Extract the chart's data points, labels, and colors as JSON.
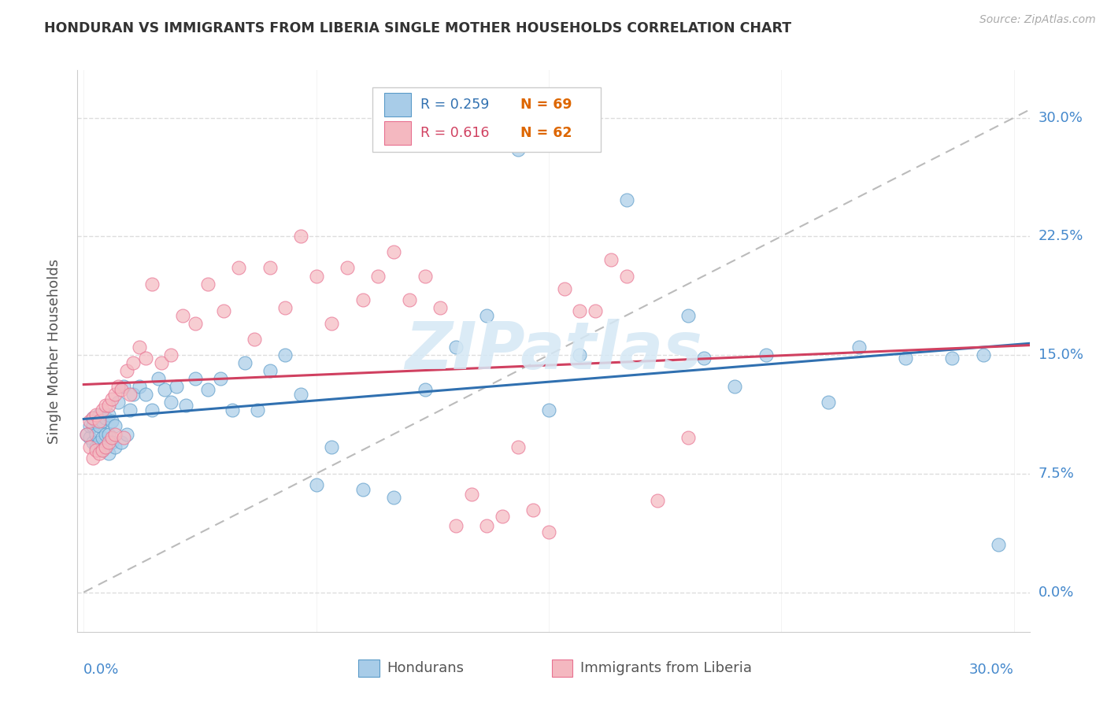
{
  "title": "HONDURAN VS IMMIGRANTS FROM LIBERIA SINGLE MOTHER HOUSEHOLDS CORRELATION CHART",
  "source": "Source: ZipAtlas.com",
  "ylabel": "Single Mother Households",
  "ytick_values": [
    0.0,
    0.075,
    0.15,
    0.225,
    0.3
  ],
  "xlim": [
    -0.002,
    0.305
  ],
  "ylim": [
    -0.025,
    0.33
  ],
  "legend_blue_r": "R = 0.259",
  "legend_blue_n": "N = 69",
  "legend_pink_r": "R = 0.616",
  "legend_pink_n": "N = 62",
  "legend_blue_label": "Hondurans",
  "legend_pink_label": "Immigrants from Liberia",
  "blue_scatter_color": "#a8cce8",
  "blue_scatter_edge": "#5b9bc8",
  "pink_scatter_color": "#f4b8c0",
  "pink_scatter_edge": "#e87090",
  "blue_line_color": "#3070b0",
  "pink_line_color": "#d04060",
  "diag_line_color": "#bbbbbb",
  "tick_label_color": "#4488cc",
  "watermark_color": "#d5e8f5",
  "background_color": "#ffffff",
  "grid_color": "#dddddd",
  "n_color": "#dd6600",
  "hondurans_x": [
    0.001,
    0.002,
    0.002,
    0.003,
    0.003,
    0.003,
    0.004,
    0.004,
    0.004,
    0.005,
    0.005,
    0.005,
    0.006,
    0.006,
    0.006,
    0.007,
    0.007,
    0.007,
    0.008,
    0.008,
    0.008,
    0.009,
    0.009,
    0.01,
    0.01,
    0.011,
    0.012,
    0.013,
    0.014,
    0.015,
    0.016,
    0.018,
    0.02,
    0.022,
    0.024,
    0.026,
    0.028,
    0.03,
    0.033,
    0.036,
    0.04,
    0.044,
    0.048,
    0.052,
    0.056,
    0.06,
    0.065,
    0.07,
    0.075,
    0.08,
    0.09,
    0.1,
    0.11,
    0.12,
    0.13,
    0.14,
    0.15,
    0.16,
    0.175,
    0.195,
    0.2,
    0.21,
    0.22,
    0.24,
    0.25,
    0.265,
    0.28,
    0.29,
    0.295
  ],
  "hondurans_y": [
    0.1,
    0.098,
    0.105,
    0.095,
    0.105,
    0.11,
    0.092,
    0.1,
    0.108,
    0.095,
    0.105,
    0.112,
    0.09,
    0.098,
    0.108,
    0.092,
    0.1,
    0.11,
    0.088,
    0.1,
    0.112,
    0.095,
    0.108,
    0.092,
    0.105,
    0.12,
    0.095,
    0.13,
    0.1,
    0.115,
    0.125,
    0.13,
    0.125,
    0.115,
    0.135,
    0.128,
    0.12,
    0.13,
    0.118,
    0.135,
    0.128,
    0.135,
    0.115,
    0.145,
    0.115,
    0.14,
    0.15,
    0.125,
    0.068,
    0.092,
    0.065,
    0.06,
    0.128,
    0.155,
    0.175,
    0.28,
    0.115,
    0.15,
    0.248,
    0.175,
    0.148,
    0.13,
    0.15,
    0.12,
    0.155,
    0.148,
    0.148,
    0.15,
    0.03
  ],
  "liberia_x": [
    0.001,
    0.002,
    0.002,
    0.003,
    0.003,
    0.004,
    0.004,
    0.005,
    0.005,
    0.006,
    0.006,
    0.007,
    0.007,
    0.008,
    0.008,
    0.009,
    0.009,
    0.01,
    0.01,
    0.011,
    0.012,
    0.013,
    0.014,
    0.015,
    0.016,
    0.018,
    0.02,
    0.022,
    0.025,
    0.028,
    0.032,
    0.036,
    0.04,
    0.045,
    0.05,
    0.055,
    0.06,
    0.065,
    0.07,
    0.075,
    0.08,
    0.085,
    0.09,
    0.095,
    0.1,
    0.105,
    0.11,
    0.115,
    0.12,
    0.125,
    0.13,
    0.135,
    0.14,
    0.145,
    0.15,
    0.155,
    0.16,
    0.165,
    0.17,
    0.175,
    0.185,
    0.195
  ],
  "liberia_y": [
    0.1,
    0.092,
    0.108,
    0.085,
    0.11,
    0.09,
    0.112,
    0.088,
    0.108,
    0.09,
    0.115,
    0.092,
    0.118,
    0.095,
    0.118,
    0.098,
    0.122,
    0.1,
    0.125,
    0.13,
    0.128,
    0.098,
    0.14,
    0.125,
    0.145,
    0.155,
    0.148,
    0.195,
    0.145,
    0.15,
    0.175,
    0.17,
    0.195,
    0.178,
    0.205,
    0.16,
    0.205,
    0.18,
    0.225,
    0.2,
    0.17,
    0.205,
    0.185,
    0.2,
    0.215,
    0.185,
    0.2,
    0.18,
    0.042,
    0.062,
    0.042,
    0.048,
    0.092,
    0.052,
    0.038,
    0.192,
    0.178,
    0.178,
    0.21,
    0.2,
    0.058,
    0.098
  ]
}
